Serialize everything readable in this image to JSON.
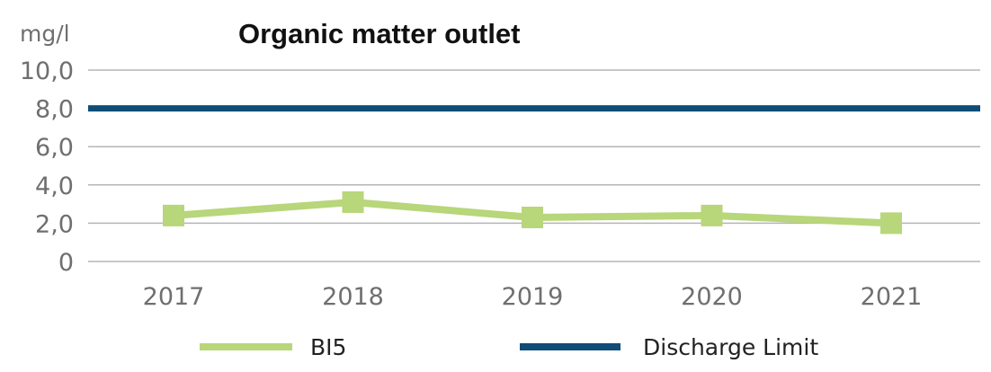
{
  "chart_data": {
    "type": "line",
    "title": "Organic matter outlet",
    "ylabel": "mg/l",
    "xlabel": "",
    "categories": [
      "2017",
      "2018",
      "2019",
      "2020",
      "2021"
    ],
    "ylim": [
      0,
      10
    ],
    "yticks": [
      0,
      2,
      4,
      6,
      8,
      10
    ],
    "ytick_labels": [
      "0",
      "2,0",
      "4,0",
      "6,0",
      "8,0",
      "10,0"
    ],
    "grid": true,
    "legend_position": "bottom",
    "series": [
      {
        "name": "BI5",
        "values": [
          2.4,
          3.1,
          2.3,
          2.4,
          2.0
        ],
        "color": "#b8d67a",
        "marker": "square"
      },
      {
        "name": "Discharge Limit",
        "values": [
          8.0,
          8.0,
          8.0,
          8.0,
          8.0
        ],
        "color": "#0f4c78",
        "marker": "none"
      }
    ]
  }
}
